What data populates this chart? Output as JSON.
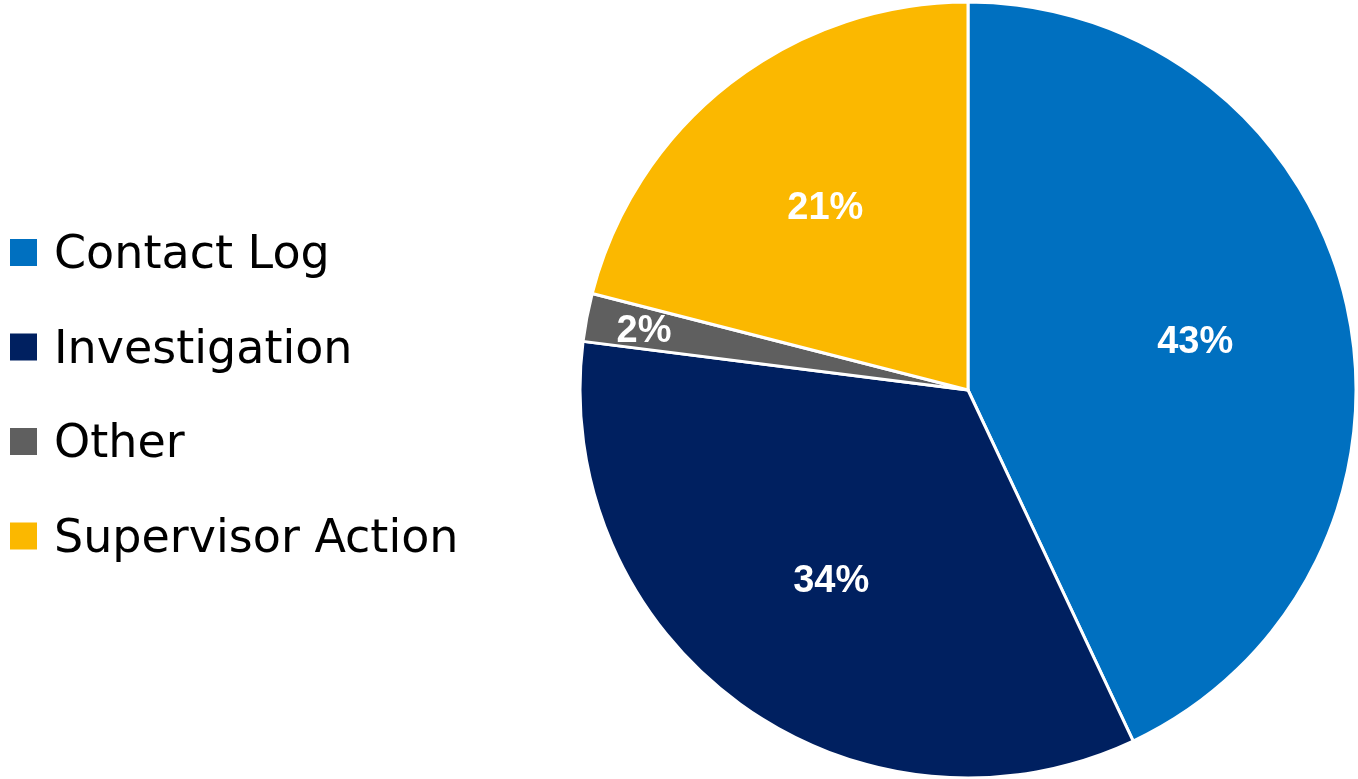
{
  "chart_data": {
    "type": "pie",
    "categories": [
      "Contact Log",
      "Investigation",
      "Other",
      "Supervisor Action"
    ],
    "values": [
      43,
      34,
      2,
      21
    ],
    "value_labels": [
      "43%",
      "34%",
      "2%",
      "21%"
    ],
    "colors": [
      "#0070c0",
      "#002060",
      "#5f5f5f",
      "#fbb800"
    ],
    "legend": "left"
  }
}
